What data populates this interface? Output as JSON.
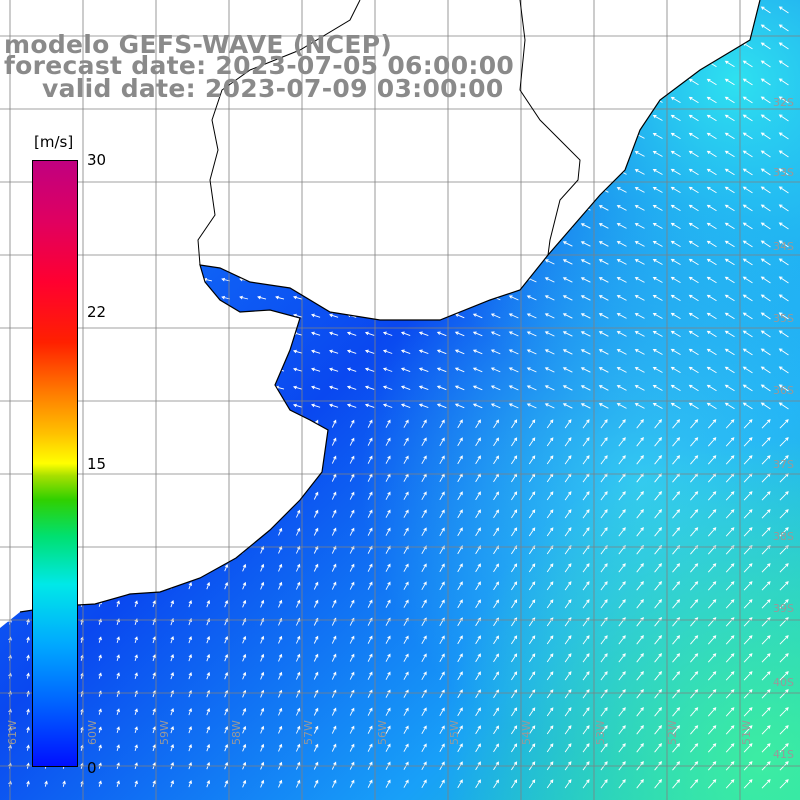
{
  "title": {
    "line1": "modelo GEFS-WAVE (NCEP)",
    "line2": "forecast date: 2023-07-05 06:00:00",
    "line3": "valid date: 2023-07-09 03:00:00"
  },
  "colorbar": {
    "units": "[m/s]",
    "ticks": [
      "30",
      "22",
      "15",
      "0"
    ],
    "colors": [
      "#0010ff",
      "#00a8ff",
      "#00e8e8",
      "#30d000",
      "#ffff00",
      "#ff7800",
      "#ff0030",
      "#c00080"
    ]
  },
  "map": {
    "variable": "wind speed and direction",
    "land_color": "#ffffff",
    "coast_color": "#000000",
    "grid_color": "#808080",
    "arrow_color": "#ffffff",
    "lon_labels": [
      "61W",
      "60W",
      "59W",
      "58W",
      "57W",
      "56W",
      "55W",
      "54W",
      "53W",
      "52W",
      "51W"
    ],
    "lat_labels": [
      "32S",
      "33S",
      "34S",
      "35S",
      "36S",
      "37S",
      "38S",
      "39S",
      "40S",
      "41S"
    ]
  }
}
